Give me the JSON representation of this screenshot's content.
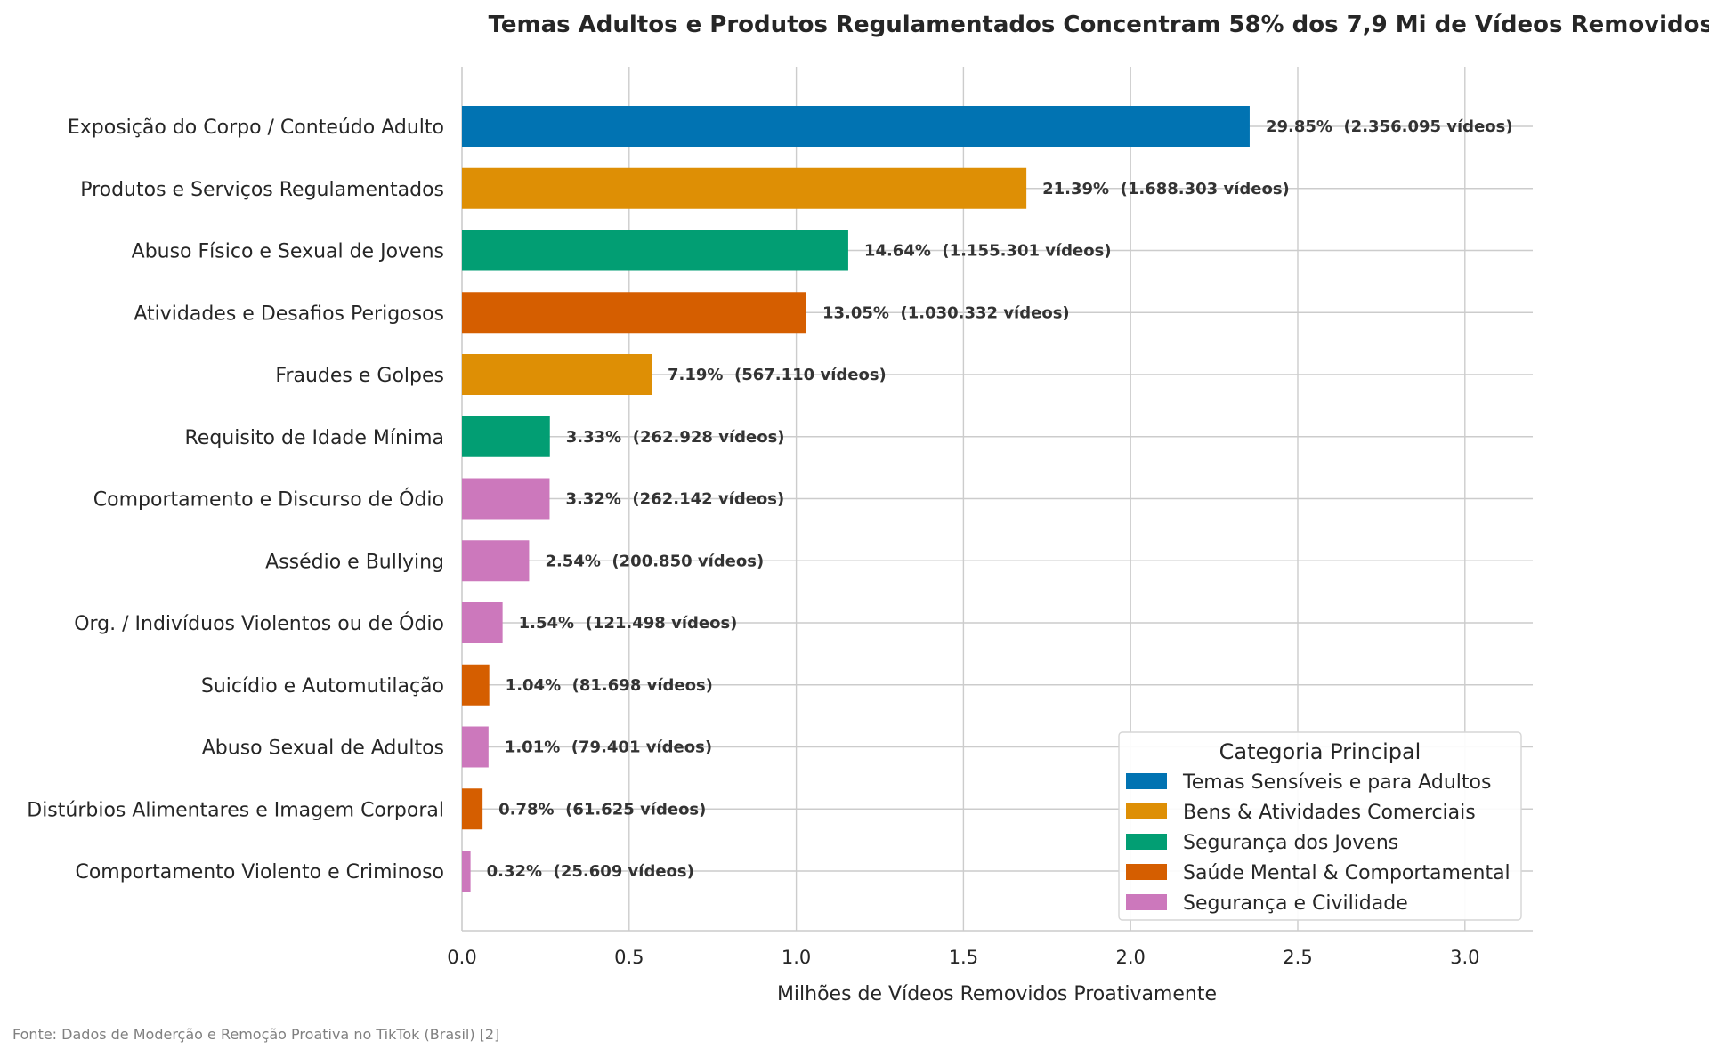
{
  "chart_data": {
    "type": "bar",
    "orientation": "horizontal",
    "title": "Temas Adultos e Produtos Regulamentados Concentram 58% dos 7,9 Mi de Vídeos Removidos",
    "xlabel": "Milhões de Vídeos Removidos Proativamente",
    "ylabel": "",
    "xlim": [
      0,
      3.2
    ],
    "xticks": [
      "0.0",
      "0.5",
      "1.0",
      "1.5",
      "2.0",
      "2.5",
      "3.0"
    ],
    "grid": true,
    "legend_position": "bottom-right",
    "legend_title": "Categoria Principal",
    "legend": [
      {
        "name": "Temas Sensíveis e para Adultos",
        "color": "#0173b2"
      },
      {
        "name": "Bens & Atividades Comerciais",
        "color": "#de8f05"
      },
      {
        "name": "Segurança dos Jovens",
        "color": "#029e73"
      },
      {
        "name": "Saúde Mental & Comportamental",
        "color": "#d55e00"
      },
      {
        "name": "Segurança e Civilidade",
        "color": "#cc78bc"
      }
    ],
    "bars": [
      {
        "category": "Exposição do Corpo / Conteúdo Adulto",
        "value": 2.356095,
        "label": "29.85%  (2.356.095 vídeos)",
        "group": 0
      },
      {
        "category": "Produtos e Serviços Regulamentados",
        "value": 1.688303,
        "label": "21.39%  (1.688.303 vídeos)",
        "group": 1
      },
      {
        "category": "Abuso Físico e Sexual de Jovens",
        "value": 1.155301,
        "label": "14.64%  (1.155.301 vídeos)",
        "group": 2
      },
      {
        "category": "Atividades e Desafios Perigosos",
        "value": 1.030332,
        "label": "13.05%  (1.030.332 vídeos)",
        "group": 3
      },
      {
        "category": "Fraudes e Golpes",
        "value": 0.56711,
        "label": "7.19%  (567.110 vídeos)",
        "group": 1
      },
      {
        "category": "Requisito de Idade Mínima",
        "value": 0.262928,
        "label": "3.33%  (262.928 vídeos)",
        "group": 2
      },
      {
        "category": "Comportamento e Discurso de Ódio",
        "value": 0.262142,
        "label": "3.32%  (262.142 vídeos)",
        "group": 4
      },
      {
        "category": "Assédio e Bullying",
        "value": 0.20085,
        "label": "2.54%  (200.850 vídeos)",
        "group": 4
      },
      {
        "category": "Org. / Indivíduos Violentos ou de Ódio",
        "value": 0.121498,
        "label": "1.54%  (121.498 vídeos)",
        "group": 4
      },
      {
        "category": "Suicídio e Automutilação",
        "value": 0.081698,
        "label": "1.04%  (81.698 vídeos)",
        "group": 3
      },
      {
        "category": "Abuso Sexual de Adultos",
        "value": 0.079401,
        "label": "1.01%  (79.401 vídeos)",
        "group": 4
      },
      {
        "category": "Distúrbios Alimentares e Imagem Corporal",
        "value": 0.061625,
        "label": "0.78%  (61.625 vídeos)",
        "group": 3
      },
      {
        "category": "Comportamento Violento e Criminoso",
        "value": 0.025609,
        "label": "0.32%  (25.609 vídeos)",
        "group": 4
      }
    ],
    "source": "Fonte: Dados de Moderção e Remoção Proativa no TikTok (Brasil) [2]"
  }
}
